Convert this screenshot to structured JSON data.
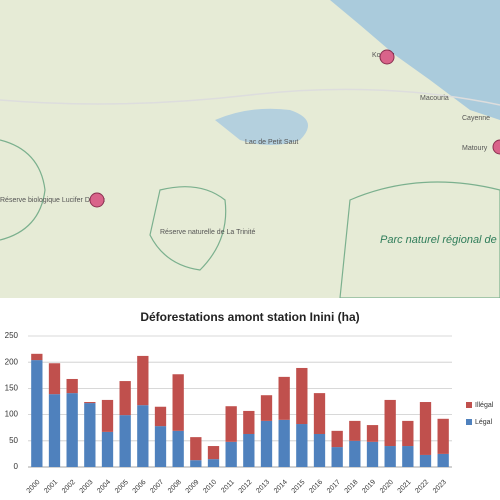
{
  "map": {
    "labels": [
      "Kourou",
      "Macouria",
      "Cayenne",
      "Matoury",
      "Lac de Petit Saut",
      "Réserve biologique Lucifer Dékou",
      "Réserve naturelle de La Trinité",
      "Parc naturel régional de Guyane"
    ]
  },
  "chart_data": {
    "type": "bar",
    "stacked": true,
    "title": "Déforestations amont station Inini (ha)",
    "categories": [
      "2000",
      "2001",
      "2002",
      "2003",
      "2004",
      "2005",
      "2006",
      "2007",
      "2008",
      "2009",
      "2010",
      "2011",
      "2012",
      "2013",
      "2014",
      "2015",
      "2016",
      "2017",
      "2018",
      "2019",
      "2020",
      "2021",
      "2022",
      "2023"
    ],
    "series": [
      {
        "name": "Légal",
        "color": "#4f81bd",
        "values": [
          204,
          139,
          141,
          122,
          67,
          99,
          118,
          78,
          69,
          13,
          15,
          48,
          63,
          88,
          90,
          82,
          63,
          38,
          50,
          48,
          40,
          40,
          23,
          25
        ]
      },
      {
        "name": "Illégal",
        "color": "#c0504d",
        "values": [
          12,
          59,
          27,
          2,
          61,
          65,
          94,
          37,
          108,
          44,
          25,
          68,
          44,
          49,
          82,
          107,
          78,
          31,
          38,
          32,
          88,
          48,
          101,
          67
        ]
      }
    ],
    "ylim": [
      0,
      250
    ],
    "yticks": [
      0,
      50,
      100,
      150,
      200,
      250
    ],
    "grid": true,
    "legend": "right"
  }
}
